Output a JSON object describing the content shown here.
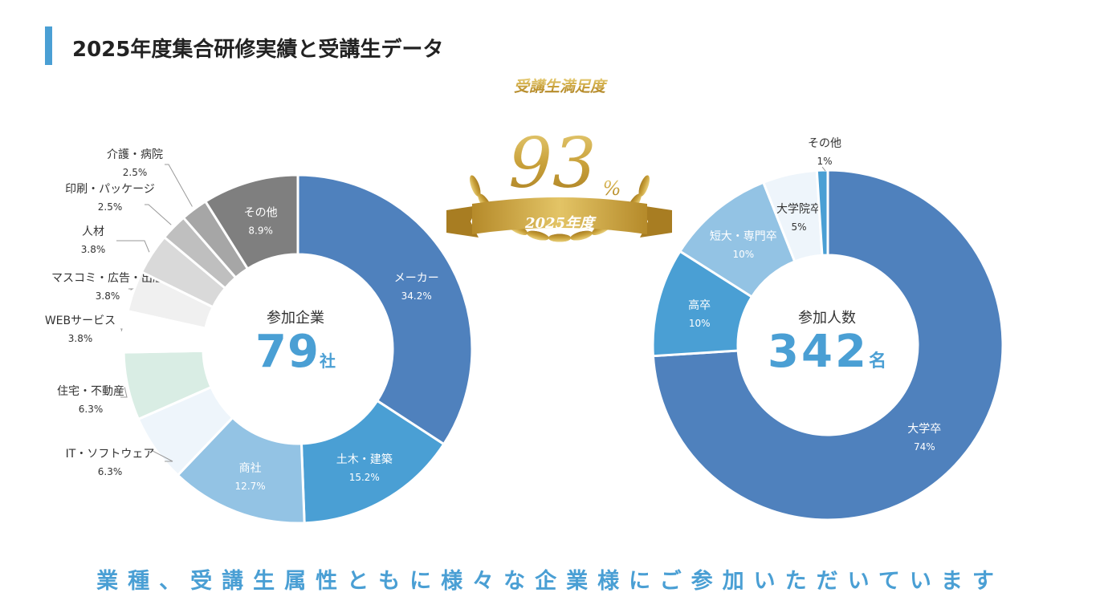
{
  "page": {
    "title": "2025年度集合研修実績と受講生データ",
    "slogan": "業種、受講生属性ともに様々な企業様にご参加いただいています"
  },
  "badge": {
    "label": "受講生満足度",
    "value": "93",
    "unit": "%",
    "year": "2025年度"
  },
  "colors": {
    "accent": "#4a9fd4",
    "gold": "#c9a13a",
    "dark_blue": "#4f81bd",
    "mid_blue": "#4a9fd4",
    "light_blue": "#93c3e4",
    "gray_dark": "#7f7f7f"
  },
  "chart_data": [
    {
      "type": "pie",
      "title": "参加企業",
      "center_value": "79",
      "center_unit": "社",
      "slices": [
        {
          "label": "メーカー",
          "percent_label": "34.2%",
          "value": 34.2,
          "color": "#4f81bd",
          "label_inside": true
        },
        {
          "label": "土木・建築",
          "percent_label": "15.2%",
          "value": 15.2,
          "color": "#4a9fd4",
          "label_inside": true
        },
        {
          "label": "商社",
          "percent_label": "12.7%",
          "value": 12.7,
          "color": "#93c3e4",
          "label_inside": true
        },
        {
          "label": "IT・ソフトウェア",
          "percent_label": "6.3%",
          "value": 6.3,
          "color": "#eef5fb",
          "label_inside": false
        },
        {
          "label": "住宅・不動産",
          "percent_label": "6.3%",
          "value": 6.3,
          "color": "#d9ede4",
          "label_inside": false
        },
        {
          "label": "WEBサービス",
          "percent_label": "3.8%",
          "value": 3.8,
          "color": "#ffffff",
          "label_inside": false
        },
        {
          "label": "マスコミ・広告・出版",
          "percent_label": "3.8%",
          "value": 3.8,
          "color": "#f0f0f0",
          "label_inside": false
        },
        {
          "label": "人材",
          "percent_label": "3.8%",
          "value": 3.8,
          "color": "#d9d9d9",
          "label_inside": false
        },
        {
          "label": "印刷・パッケージ",
          "percent_label": "2.5%",
          "value": 2.5,
          "color": "#bfbfbf",
          "label_inside": false
        },
        {
          "label": "介護・病院",
          "percent_label": "2.5%",
          "value": 2.5,
          "color": "#a6a6a6",
          "label_inside": false
        },
        {
          "label": "その他",
          "percent_label": "8.9%",
          "value": 8.9,
          "color": "#7f7f7f",
          "label_inside": true
        }
      ]
    },
    {
      "type": "pie",
      "title": "参加人数",
      "center_value": "342",
      "center_unit": "名",
      "slices": [
        {
          "label": "大学卒",
          "percent_label": "74%",
          "value": 74,
          "color": "#4f81bd",
          "label_inside": true
        },
        {
          "label": "高卒",
          "percent_label": "10%",
          "value": 10,
          "color": "#4a9fd4",
          "label_inside": true
        },
        {
          "label": "短大・専門卒",
          "percent_label": "10%",
          "value": 10,
          "color": "#93c3e4",
          "label_inside": true
        },
        {
          "label": "大学院卒",
          "percent_label": "5%",
          "value": 5,
          "color": "#eef5fb",
          "label_inside": true
        },
        {
          "label": "その他",
          "percent_label": "1%",
          "value": 1,
          "color": "#4a9fd4",
          "label_inside": false
        }
      ]
    }
  ]
}
